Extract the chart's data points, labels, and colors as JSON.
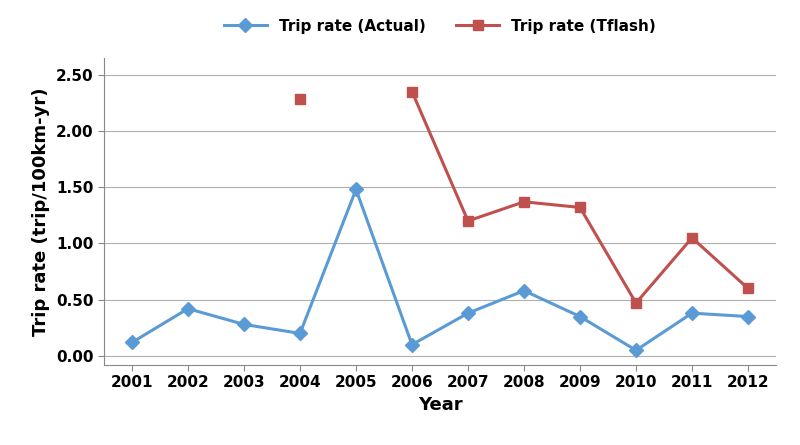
{
  "years": [
    2001,
    2002,
    2003,
    2004,
    2005,
    2006,
    2007,
    2008,
    2009,
    2010,
    2011,
    2012
  ],
  "actual": [
    0.12,
    0.42,
    0.28,
    0.2,
    1.48,
    0.1,
    0.38,
    0.58,
    0.35,
    0.05,
    0.38,
    0.35
  ],
  "tflash": [
    null,
    null,
    null,
    2.28,
    null,
    2.35,
    1.2,
    1.37,
    1.32,
    0.47,
    1.05,
    0.6
  ],
  "actual_color": "#5B9BD5",
  "tflash_color": "#C0504D",
  "xlabel": "Year",
  "ylabel": "Trip rate (trip/100km-yr)",
  "legend_actual": "Trip rate (Actual)",
  "legend_tflash": "Trip rate (Tflash)",
  "ylim": [
    -0.08,
    2.65
  ],
  "yticks": [
    0.0,
    0.5,
    1.0,
    1.5,
    2.0,
    2.5
  ],
  "background_color": "#ffffff",
  "grid_color": "#b0b0b0",
  "label_fontsize": 13,
  "tick_fontsize": 11,
  "legend_fontsize": 11
}
